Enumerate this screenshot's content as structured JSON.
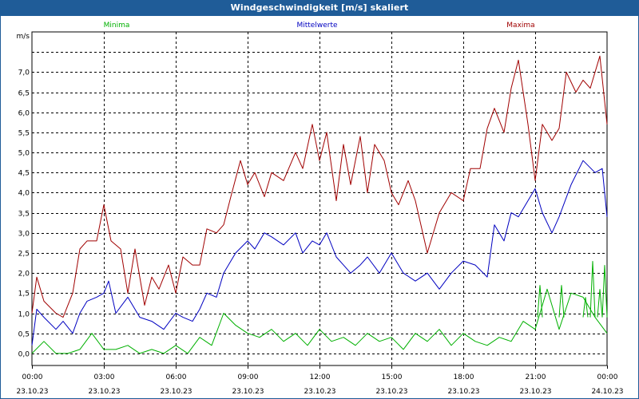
{
  "window": {
    "title": "Windgeschwindigkeit [m/s] skaliert"
  },
  "colors": {
    "titlebar": "#1f5c98",
    "min": "#00b000",
    "mean": "#0000c0",
    "max": "#a00000",
    "grid": "#000000"
  },
  "chart_data": {
    "type": "line",
    "title": "Windgeschwindigkeit [m/s] skaliert",
    "ylabel": "m/s",
    "xlabel": "",
    "ylim": [
      -0.3,
      8.0
    ],
    "xlim": [
      0,
      24
    ],
    "yticks": [
      0.0,
      0.5,
      1.0,
      1.5,
      2.0,
      2.5,
      3.0,
      3.5,
      4.0,
      4.5,
      5.0,
      5.5,
      6.0,
      6.5,
      7.0
    ],
    "ytick_labels": [
      "0,0",
      "0,5",
      "1,0",
      "1,5",
      "2,0",
      "2,5",
      "3,0",
      "3,5",
      "4,0",
      "4,5",
      "5,0",
      "5,5",
      "6,0",
      "6,5",
      "7,0"
    ],
    "xticks": [
      0,
      3,
      6,
      9,
      12,
      15,
      18,
      21,
      24
    ],
    "xtick_times": [
      "00:00",
      "03:00",
      "06:00",
      "09:00",
      "12:00",
      "15:00",
      "18:00",
      "21:00",
      "00:00"
    ],
    "xtick_dates": [
      "23.10.23",
      "23.10.23",
      "23.10.23",
      "23.10.23",
      "23.10.23",
      "23.10.23",
      "23.10.23",
      "23.10.23",
      "24.10.23"
    ],
    "grid": true,
    "series": [
      {
        "name": "Minima",
        "color": "#00b000",
        "x": [
          0,
          0.5,
          1,
          1.5,
          2,
          2.5,
          3,
          3.5,
          4,
          4.5,
          5,
          5.5,
          6,
          6.5,
          7,
          7.5,
          8,
          8.5,
          9,
          9.5,
          10,
          10.5,
          11,
          11.5,
          12,
          12.5,
          13,
          13.5,
          14,
          14.5,
          15,
          15.5,
          16,
          16.5,
          17,
          17.5,
          18,
          18.5,
          19,
          19.5,
          20,
          20.5,
          21,
          21.5,
          22,
          22.5,
          23,
          23.5,
          24
        ],
        "y": [
          0.0,
          0.3,
          0.0,
          0.0,
          0.1,
          0.5,
          0.1,
          0.1,
          0.2,
          0.0,
          0.1,
          0.0,
          0.2,
          0.0,
          0.4,
          0.2,
          1.0,
          0.7,
          0.5,
          0.4,
          0.6,
          0.3,
          0.5,
          0.2,
          0.6,
          0.3,
          0.4,
          0.2,
          0.5,
          0.3,
          0.4,
          0.1,
          0.5,
          0.3,
          0.6,
          0.2,
          0.5,
          0.3,
          0.2,
          0.4,
          0.3,
          0.8,
          0.6,
          1.6,
          0.6,
          1.5,
          1.4,
          0.9,
          0.5
        ],
        "x2": [
          21.2,
          22.1,
          23.1,
          23.4,
          23.7,
          23.9
        ],
        "y2": [
          1.7,
          1.7,
          1.4,
          2.3,
          1.6,
          2.2
        ]
      },
      {
        "name": "Mittelwerte",
        "color": "#0000c0",
        "x": [
          0,
          0.2,
          0.5,
          1,
          1.3,
          1.7,
          2,
          2.3,
          2.7,
          3,
          3.2,
          3.5,
          4,
          4.5,
          5,
          5.5,
          6,
          6.3,
          6.7,
          7,
          7.3,
          7.7,
          8,
          8.5,
          9,
          9.3,
          9.7,
          10,
          10.5,
          11,
          11.3,
          11.7,
          12,
          12.3,
          12.7,
          13,
          13.3,
          13.7,
          14,
          14.5,
          15,
          15.5,
          16,
          16.5,
          17,
          17.5,
          18,
          18.5,
          19,
          19.3,
          19.7,
          20,
          20.3,
          20.7,
          21,
          21.3,
          21.7,
          22,
          22.5,
          23,
          23.5,
          23.8,
          24
        ],
        "y": [
          0.2,
          1.1,
          0.9,
          0.6,
          0.8,
          0.5,
          1.0,
          1.3,
          1.4,
          1.5,
          1.8,
          1.0,
          1.4,
          0.9,
          0.8,
          0.6,
          1.0,
          0.9,
          0.8,
          1.1,
          1.5,
          1.4,
          2.0,
          2.5,
          2.8,
          2.6,
          3.0,
          2.9,
          2.7,
          3.0,
          2.5,
          2.8,
          2.7,
          3.0,
          2.4,
          2.2,
          2.0,
          2.2,
          2.4,
          2.0,
          2.5,
          2.0,
          1.8,
          2.0,
          1.6,
          2.0,
          2.3,
          2.2,
          1.9,
          3.2,
          2.8,
          3.5,
          3.4,
          3.8,
          4.1,
          3.5,
          3.0,
          3.4,
          4.2,
          4.8,
          4.5,
          4.6,
          3.4
        ]
      },
      {
        "name": "Maxima",
        "color": "#a00000",
        "x": [
          0,
          0.2,
          0.5,
          1,
          1.3,
          1.7,
          2,
          2.3,
          2.7,
          3,
          3.3,
          3.7,
          4,
          4.3,
          4.7,
          5,
          5.3,
          5.7,
          6,
          6.3,
          6.7,
          7,
          7.3,
          7.7,
          8,
          8.3,
          8.7,
          9,
          9.3,
          9.7,
          10,
          10.5,
          11,
          11.3,
          11.7,
          12,
          12.3,
          12.7,
          13,
          13.3,
          13.7,
          14,
          14.3,
          14.7,
          15,
          15.3,
          15.7,
          16,
          16.5,
          17,
          17.5,
          18,
          18.3,
          18.7,
          19,
          19.3,
          19.7,
          20,
          20.3,
          20.7,
          21,
          21.3,
          21.7,
          22,
          22.3,
          22.7,
          23,
          23.3,
          23.7,
          24
        ],
        "y": [
          1.0,
          1.9,
          1.3,
          1.0,
          0.9,
          1.5,
          2.6,
          2.8,
          2.8,
          3.7,
          2.8,
          2.6,
          1.5,
          2.6,
          1.2,
          1.9,
          1.6,
          2.2,
          1.5,
          2.4,
          2.2,
          2.2,
          3.1,
          3.0,
          3.2,
          3.9,
          4.8,
          4.2,
          4.5,
          3.9,
          4.5,
          4.3,
          5.0,
          4.6,
          5.7,
          4.8,
          5.5,
          3.8,
          5.2,
          4.2,
          5.4,
          4.0,
          5.2,
          4.8,
          4.0,
          3.7,
          4.3,
          3.8,
          2.5,
          3.5,
          4.0,
          3.8,
          4.6,
          4.6,
          5.6,
          6.1,
          5.5,
          6.6,
          7.3,
          5.7,
          4.3,
          5.7,
          5.3,
          5.6,
          7.0,
          6.5,
          6.8,
          6.6,
          7.4,
          5.7
        ]
      }
    ]
  }
}
